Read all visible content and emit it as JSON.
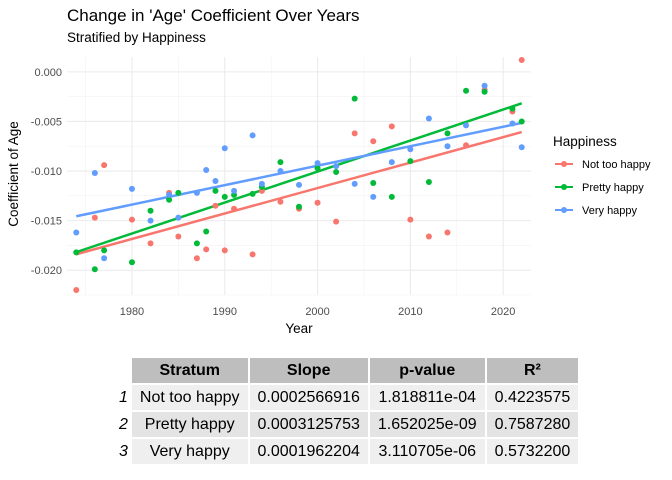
{
  "chart_data": {
    "type": "scatter",
    "title": "Change in 'Age' Coefficient Over Years",
    "subtitle": "Stratified by Happiness",
    "xlabel": "Year",
    "ylabel": "Coefficient of Age",
    "xlim": [
      1973,
      2023
    ],
    "ylim": [
      -0.0225,
      0.0015
    ],
    "x_ticks": [
      1980,
      1990,
      2000,
      2010,
      2020
    ],
    "y_ticks": [
      -0.02,
      -0.015,
      -0.01,
      -0.005,
      0.0
    ],
    "x_tick_labels": [
      "1980",
      "1990",
      "2000",
      "2010",
      "2020"
    ],
    "y_tick_labels": [
      "-0.020",
      "-0.015",
      "-0.010",
      "-0.005",
      "0.000"
    ],
    "grid": true,
    "legend": {
      "title": "Happiness",
      "position": "right"
    },
    "series": [
      {
        "name": "Not too happy",
        "color": "#F8766D",
        "points": [
          [
            1974,
            -0.022
          ],
          [
            1976,
            -0.0147
          ],
          [
            1977,
            -0.0094
          ],
          [
            1980,
            -0.0149
          ],
          [
            1982,
            -0.0173
          ],
          [
            1984,
            -0.0122
          ],
          [
            1985,
            -0.0166
          ],
          [
            1987,
            -0.0188
          ],
          [
            1988,
            -0.0179
          ],
          [
            1989,
            -0.0135
          ],
          [
            1990,
            -0.018
          ],
          [
            1991,
            -0.0138
          ],
          [
            1993,
            -0.0184
          ],
          [
            1994,
            -0.012
          ],
          [
            1996,
            -0.0131
          ],
          [
            1998,
            -0.0138
          ],
          [
            2000,
            -0.0132
          ],
          [
            2002,
            -0.0151
          ],
          [
            2004,
            -0.0062
          ],
          [
            2006,
            -0.007
          ],
          [
            2008,
            -0.0055
          ],
          [
            2010,
            -0.0149
          ],
          [
            2012,
            -0.0166
          ],
          [
            2014,
            -0.0162
          ],
          [
            2016,
            -0.0074
          ],
          [
            2018,
            -0.0018
          ],
          [
            2021,
            -0.004
          ],
          [
            2022,
            0.0012
          ]
        ],
        "trend": {
          "intercept": -0.5251,
          "slope": 0.0002566916
        }
      },
      {
        "name": "Pretty happy",
        "color": "#00BA38",
        "points": [
          [
            1974,
            -0.0182
          ],
          [
            1976,
            -0.0199
          ],
          [
            1977,
            -0.018
          ],
          [
            1980,
            -0.0192
          ],
          [
            1982,
            -0.014
          ],
          [
            1984,
            -0.0129
          ],
          [
            1985,
            -0.0122
          ],
          [
            1987,
            -0.0173
          ],
          [
            1988,
            -0.0161
          ],
          [
            1989,
            -0.012
          ],
          [
            1990,
            -0.0126
          ],
          [
            1991,
            -0.0124
          ],
          [
            1993,
            -0.0123
          ],
          [
            1994,
            -0.0116
          ],
          [
            1996,
            -0.0091
          ],
          [
            1998,
            -0.0136
          ],
          [
            2000,
            -0.0097
          ],
          [
            2002,
            -0.0101
          ],
          [
            2004,
            -0.0027
          ],
          [
            2006,
            -0.0112
          ],
          [
            2008,
            -0.0126
          ],
          [
            2010,
            -0.009
          ],
          [
            2012,
            -0.0111
          ],
          [
            2014,
            -0.0062
          ],
          [
            2016,
            -0.0019
          ],
          [
            2018,
            -0.002
          ],
          [
            2021,
            -0.0037
          ],
          [
            2022,
            -0.005
          ]
        ],
        "trend": {
          "intercept": -0.6352,
          "slope": 0.0003125753
        }
      },
      {
        "name": "Very happy",
        "color": "#619CFF",
        "points": [
          [
            1974,
            -0.0162
          ],
          [
            1976,
            -0.0102
          ],
          [
            1977,
            -0.0188
          ],
          [
            1980,
            -0.0118
          ],
          [
            1982,
            -0.015
          ],
          [
            1984,
            -0.0124
          ],
          [
            1985,
            -0.0147
          ],
          [
            1987,
            -0.0122
          ],
          [
            1988,
            -0.0099
          ],
          [
            1989,
            -0.011
          ],
          [
            1990,
            -0.0077
          ],
          [
            1991,
            -0.012
          ],
          [
            1993,
            -0.0064
          ],
          [
            1994,
            -0.0113
          ],
          [
            1996,
            -0.01
          ],
          [
            1998,
            -0.0114
          ],
          [
            2000,
            -0.0092
          ],
          [
            2002,
            -0.0095
          ],
          [
            2004,
            -0.0113
          ],
          [
            2006,
            -0.0126
          ],
          [
            2008,
            -0.0091
          ],
          [
            2010,
            -0.0078
          ],
          [
            2012,
            -0.0047
          ],
          [
            2014,
            -0.0075
          ],
          [
            2016,
            -0.0054
          ],
          [
            2018,
            -0.0014
          ],
          [
            2021,
            -0.0052
          ],
          [
            2022,
            -0.0076
          ]
        ],
        "trend": {
          "intercept": -0.4019,
          "slope": 0.0001962204
        }
      }
    ]
  },
  "table": {
    "headers": [
      "Stratum",
      "Slope",
      "p-value",
      "R²"
    ],
    "rows": [
      {
        "rowname": "1",
        "cells": [
          "Not too happy",
          "0.0002566916",
          "1.818811e-04",
          "0.4223575"
        ]
      },
      {
        "rowname": "2",
        "cells": [
          "Pretty happy",
          "0.0003125753",
          "1.652025e-09",
          "0.7587280"
        ]
      },
      {
        "rowname": "3",
        "cells": [
          "Very happy",
          "0.0001962204",
          "3.110705e-06",
          "0.5732200"
        ]
      }
    ]
  }
}
